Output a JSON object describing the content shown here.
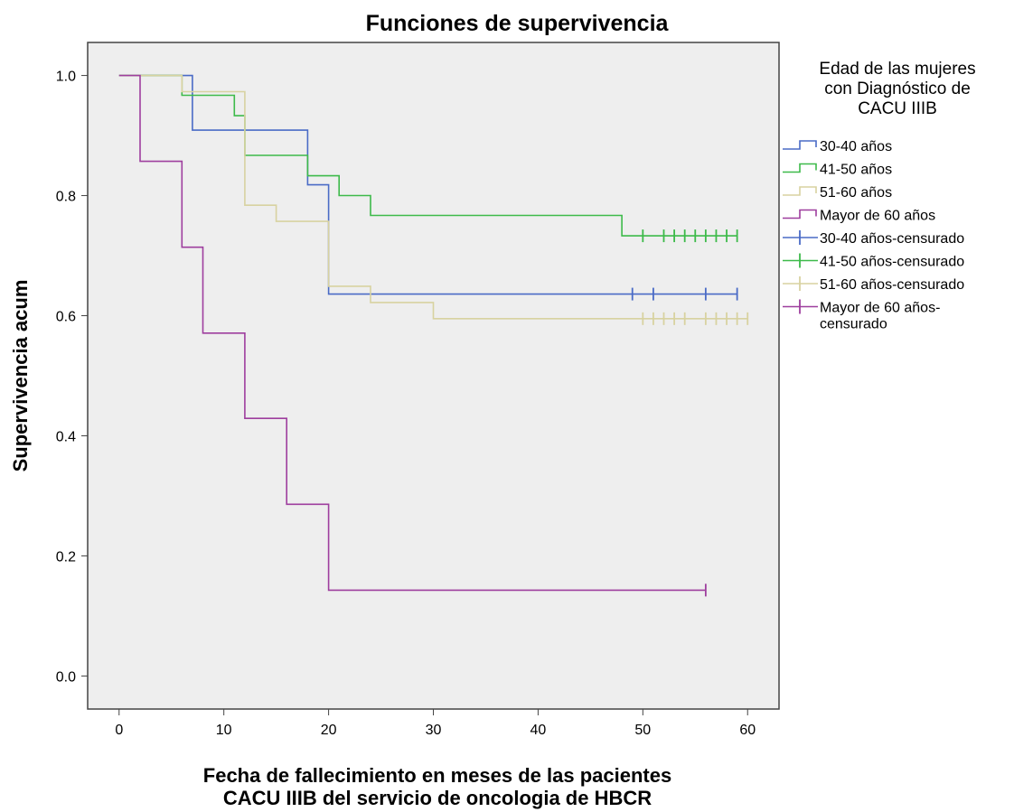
{
  "chart_data": {
    "type": "line",
    "title": "Funciones de supervivencia",
    "xlabel_lines": [
      "Fecha de fallecimiento en meses de las pacientes",
      "CACU IIIB del servicio de oncologia de HBCR"
    ],
    "ylabel": "Supervivencia acum",
    "xlim": [
      -3,
      63
    ],
    "ylim": [
      -0.055,
      1.055
    ],
    "xticks": [
      0,
      10,
      20,
      30,
      40,
      50,
      60
    ],
    "yticks": [
      0.0,
      0.2,
      0.4,
      0.6,
      0.8,
      1.0
    ],
    "xtick_labels": [
      "0",
      "10",
      "20",
      "30",
      "40",
      "50",
      "60"
    ],
    "ytick_labels": [
      "0.0",
      "0.2",
      "0.4",
      "0.6",
      "0.8",
      "1.0"
    ],
    "grid": false,
    "background": "#eeeeee",
    "legend_placement": "right",
    "legend_title": [
      "Edad de las mujeres",
      "con Diagnóstico de",
      "CACU IIIB"
    ],
    "series": [
      {
        "name": "30-40 años",
        "color": "#4a6bc6",
        "steps": [
          [
            0,
            1.0
          ],
          [
            7,
            0.909
          ],
          [
            18,
            0.818
          ],
          [
            20,
            0.636
          ]
        ],
        "end_x": 59,
        "censored": [
          49,
          51,
          56,
          59
        ]
      },
      {
        "name": "41-50 años",
        "color": "#3dba4a",
        "steps": [
          [
            0,
            1.0
          ],
          [
            6,
            0.967
          ],
          [
            11,
            0.933
          ],
          [
            12,
            0.867
          ],
          [
            18,
            0.833
          ],
          [
            21,
            0.8
          ],
          [
            24,
            0.767
          ],
          [
            48,
            0.733
          ]
        ],
        "end_x": 59,
        "censored": [
          50,
          52,
          53,
          54,
          55,
          56,
          57,
          58,
          59
        ]
      },
      {
        "name": "51-60 años",
        "color": "#d8d2a0",
        "steps": [
          [
            0,
            1.0
          ],
          [
            6,
            0.973
          ],
          [
            12,
            0.784
          ],
          [
            15,
            0.757
          ],
          [
            20,
            0.649
          ],
          [
            24,
            0.622
          ],
          [
            30,
            0.595
          ]
        ],
        "end_x": 60,
        "censored": [
          50,
          51,
          52,
          53,
          54,
          56,
          57,
          58,
          59,
          60
        ]
      },
      {
        "name": "Mayor de 60 años",
        "color": "#9e3e9e",
        "steps": [
          [
            0,
            1.0
          ],
          [
            2,
            0.857
          ],
          [
            6,
            0.714
          ],
          [
            8,
            0.571
          ],
          [
            12,
            0.429
          ],
          [
            16,
            0.286
          ],
          [
            20,
            0.143
          ]
        ],
        "end_x": 56,
        "censored": [
          56
        ]
      }
    ],
    "legend_entries": [
      {
        "label_lines": [
          "30-40 años"
        ],
        "color": "#4a6bc6",
        "kind": "step"
      },
      {
        "label_lines": [
          "41-50 años"
        ],
        "color": "#3dba4a",
        "kind": "step"
      },
      {
        "label_lines": [
          "51-60 años"
        ],
        "color": "#d8d2a0",
        "kind": "step"
      },
      {
        "label_lines": [
          "Mayor de 60 años"
        ],
        "color": "#9e3e9e",
        "kind": "step"
      },
      {
        "label_lines": [
          "30-40 años-censurado"
        ],
        "color": "#4a6bc6",
        "kind": "censor"
      },
      {
        "label_lines": [
          "41-50 años-censurado"
        ],
        "color": "#3dba4a",
        "kind": "censor"
      },
      {
        "label_lines": [
          "51-60 años-censurado"
        ],
        "color": "#d8d2a0",
        "kind": "censor"
      },
      {
        "label_lines": [
          "Mayor de 60 años-",
          "censurado"
        ],
        "color": "#9e3e9e",
        "kind": "censor"
      }
    ]
  }
}
